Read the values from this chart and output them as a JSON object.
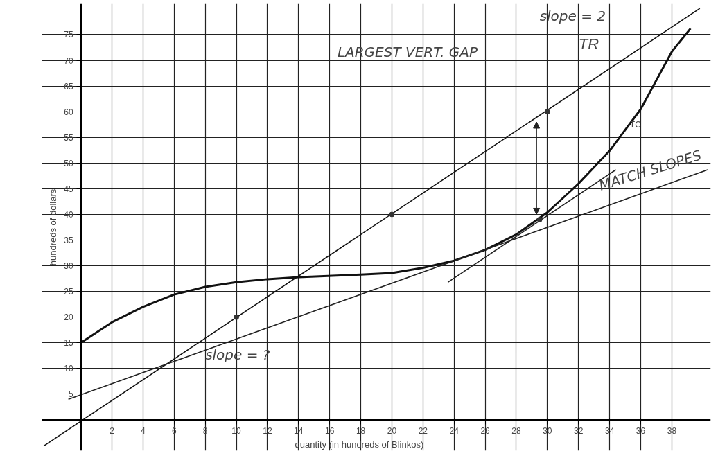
{
  "chart_data": {
    "type": "line",
    "xlabel": "quantity (in hundreds of Blinkos)",
    "ylabel": "hundreds of dollars",
    "xlim": [
      -2.5,
      40.5
    ],
    "ylim": [
      -6,
      81
    ],
    "xticks": [
      2,
      4,
      6,
      8,
      10,
      12,
      14,
      16,
      18,
      20,
      22,
      24,
      26,
      28,
      30,
      32,
      34,
      36,
      38
    ],
    "yticks": [
      5,
      10,
      15,
      20,
      25,
      30,
      35,
      40,
      45,
      50,
      55,
      60,
      65,
      70,
      75
    ],
    "grid": true,
    "marker": "none",
    "line_style": "solid",
    "series": [
      {
        "name": "TC",
        "color": "#111111",
        "x": [
          0,
          2,
          4,
          6,
          8,
          10,
          12,
          14,
          18,
          20,
          22,
          24,
          26,
          28,
          30,
          32,
          34,
          36,
          38,
          39.2
        ],
        "values": [
          15,
          19,
          22,
          24.4,
          25.9,
          26.8,
          27.4,
          27.8,
          28.3,
          28.6,
          29.6,
          31,
          33.1,
          36.1,
          40.4,
          46,
          52.4,
          60.5,
          71.7,
          76.2
        ]
      },
      {
        "name": "TR",
        "color": "#111111",
        "x": [
          -2.4,
          39.8
        ],
        "values": [
          -5.1,
          80.1
        ]
      },
      {
        "color": "#222222",
        "x": [
          -0.8,
          40.3
        ],
        "values": [
          4,
          48.7
        ]
      },
      {
        "color": "#222222",
        "x": [
          23.6,
          34.4
        ],
        "values": [
          26.8,
          48.7
        ]
      },
      {
        "type": "scatter",
        "color": "#333333",
        "x": [
          10,
          20,
          30,
          29.5
        ],
        "values": [
          20,
          40,
          60,
          39
        ]
      }
    ],
    "annotations": [
      "LARGEST VERT. GAP",
      "slope = 2",
      "MATCH SLOPES",
      "slope = ?"
    ]
  }
}
